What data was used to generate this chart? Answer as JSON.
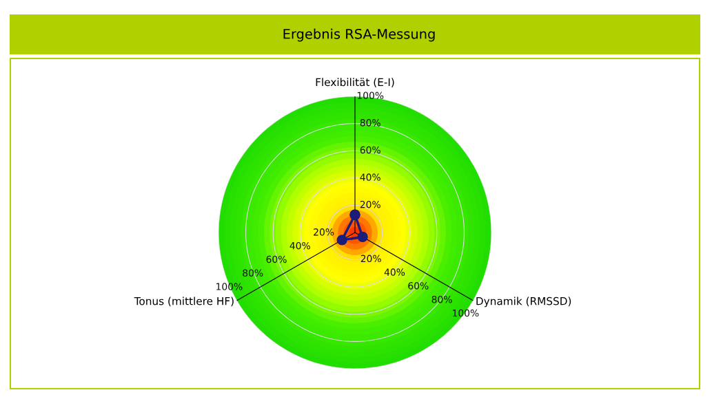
{
  "chart_data": {
    "type": "radar",
    "title": "Ergebnis RSA-Messung",
    "categories": [
      "Flexibilität (E-I)",
      "Dynamik (RMSSD)",
      "Tonus (mittlere HF)"
    ],
    "series": [
      {
        "color": "#1c1c7a",
        "values": [
          13,
          6.5,
          11
        ]
      }
    ],
    "ylim": [
      0,
      100
    ],
    "yticks": [
      {
        "value": 20,
        "label": "20%"
      },
      {
        "value": 40,
        "label": "40%"
      },
      {
        "value": 60,
        "label": "60%"
      },
      {
        "value": 80,
        "label": "80%"
      },
      {
        "value": 100,
        "label": "100%"
      }
    ],
    "grid": true,
    "marker": "circle",
    "line_style": "solid"
  }
}
